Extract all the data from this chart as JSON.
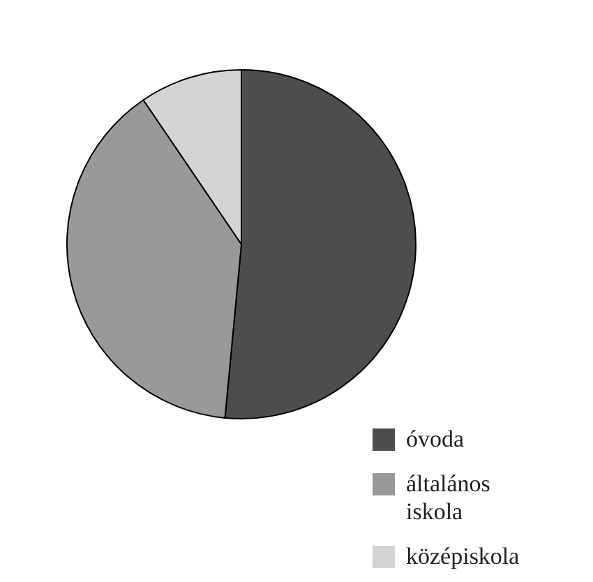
{
  "chart_data": {
    "type": "pie",
    "categories": [
      "óvoda",
      "általános iskola",
      "középiskola"
    ],
    "values": [
      51.5,
      39,
      9.5
    ],
    "colors": [
      "#4d4d4d",
      "#999999",
      "#d4d4d4"
    ],
    "legend": "bottom right"
  }
}
